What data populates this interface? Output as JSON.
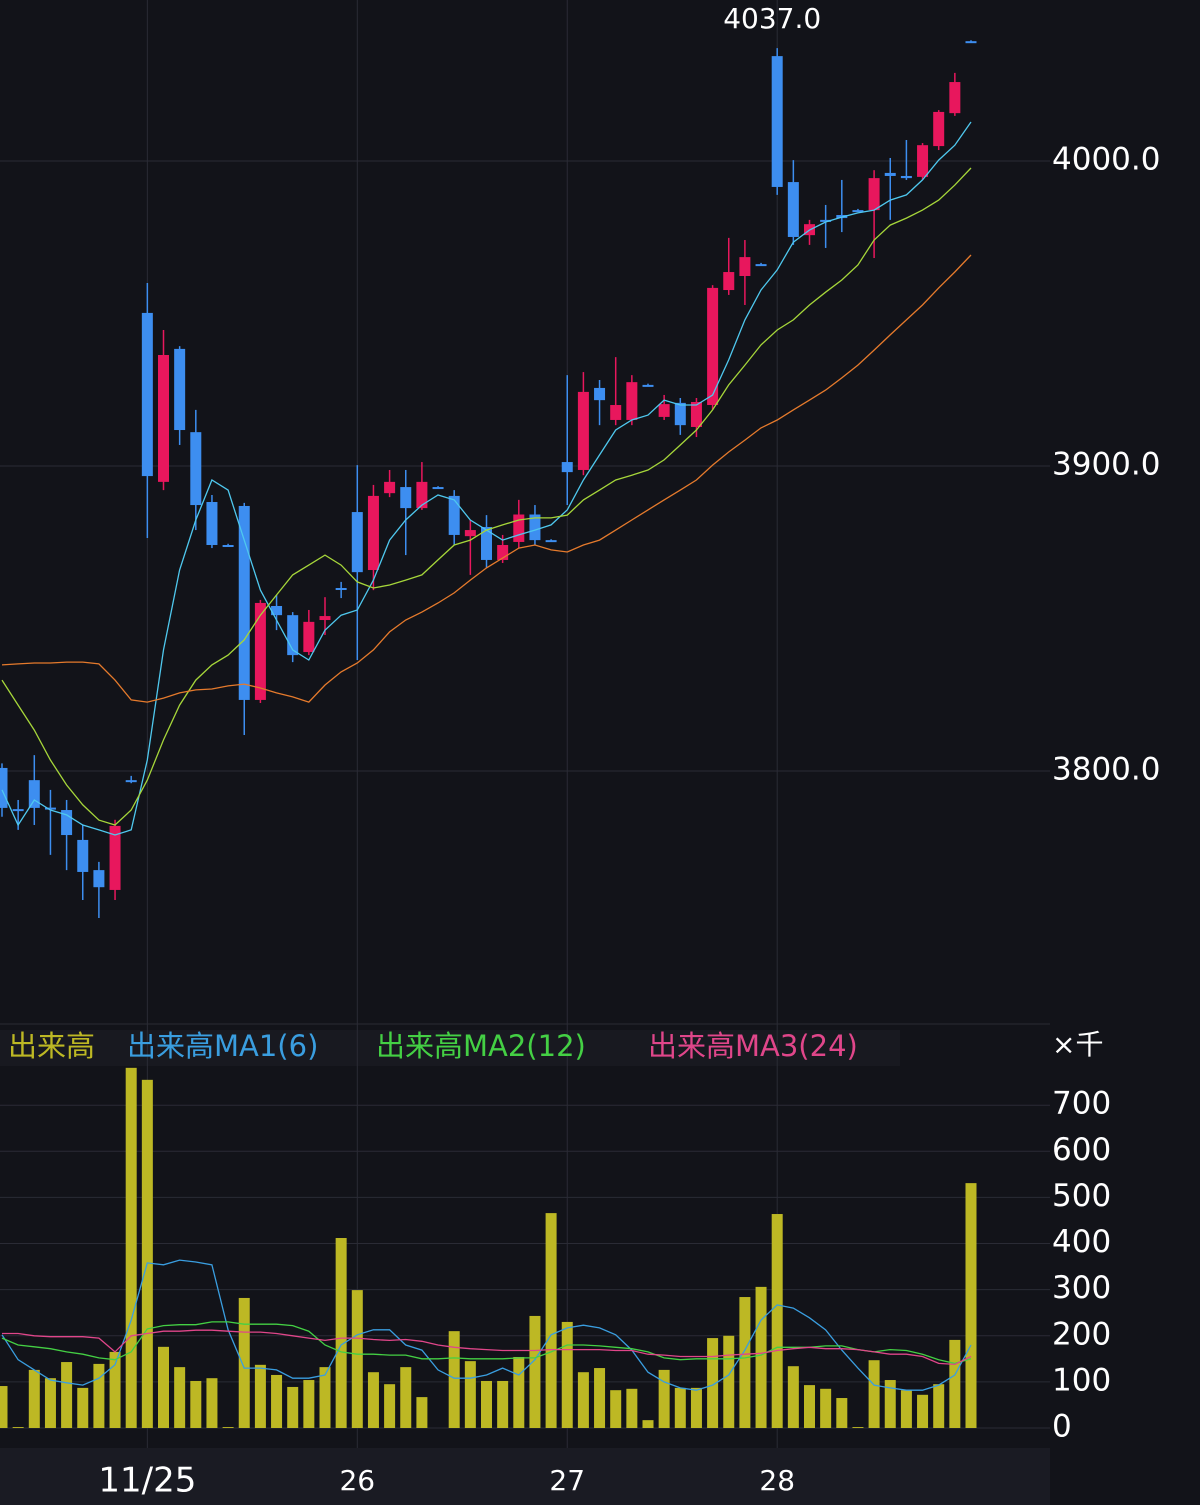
{
  "chart_data": [
    {
      "type": "candlestick",
      "up_color": "#e8175d",
      "down_color": "#3d8ef0",
      "ylim": [
        3717.7,
        4052.8
      ],
      "yticks": [
        {
          "value": 3800,
          "label": "3800.0"
        },
        {
          "value": 3900,
          "label": "3900.0"
        },
        {
          "value": 4000,
          "label": "4000.0"
        }
      ],
      "grid": true,
      "annotations": [
        {
          "value": 4037.0,
          "label": "4037.0"
        }
      ],
      "open": [
        3801.0,
        3787.5,
        3797.0,
        3788.0,
        3787.2,
        3777.4,
        3767.5,
        3761.0,
        3797.0,
        3950.2,
        3894.8,
        3938.4,
        3911.1,
        3888.2,
        3874.1,
        3886.9,
        3823.3,
        3854.1,
        3851.1,
        3839.0,
        3849.5,
        3860.0,
        3884.9,
        3865.9,
        3891.1,
        3893.1,
        3886.2,
        3893.1,
        3890.2,
        3877.0,
        3880.0,
        3869.2,
        3875.1,
        3884.1,
        3875.7,
        3901.3,
        3898.7,
        3925.6,
        3915.1,
        3915.1,
        3926.6,
        3916.1,
        3920.7,
        3912.8,
        3920.0,
        3957.7,
        3962.3,
        3966.2,
        4034.4,
        3993.1,
        3975.7,
        3980.7,
        3982.3,
        3983.9,
        3983.9,
        3996.1,
        3995.1,
        3994.8,
        4004.9,
        4015.7,
        4039.3
      ],
      "high": [
        3802.5,
        3790.5,
        3805.2,
        3793.8,
        3790.5,
        3782.3,
        3770.2,
        3784.0,
        3798.4,
        3960.0,
        3944.6,
        3939.3,
        3918.4,
        3890.5,
        3874.5,
        3887.9,
        3856.1,
        3857.7,
        3852.1,
        3852.8,
        3857.0,
        3862.0,
        3900.3,
        3893.8,
        3898.7,
        3898.7,
        3901.3,
        3893.4,
        3892.1,
        3882.3,
        3883.9,
        3877.4,
        3888.9,
        3887.2,
        3876.0,
        3929.8,
        3930.8,
        3928.2,
        3935.7,
        3929.8,
        3927.0,
        3923.3,
        3922.3,
        3922.3,
        3959.3,
        3974.8,
        3974.1,
        3966.6,
        4037.0,
        4000.3,
        3980.7,
        3985.6,
        3993.8,
        3984.3,
        3997.0,
        4001.0,
        4006.9,
        4005.9,
        4016.7,
        4028.9,
        4039.6
      ],
      "low": [
        3785.0,
        3780.7,
        3782.3,
        3772.5,
        3767.5,
        3757.7,
        3751.8,
        3757.7,
        3796.0,
        3876.4,
        3892.1,
        3906.9,
        3879.0,
        3873.1,
        3873.8,
        3811.8,
        3822.3,
        3846.2,
        3835.7,
        3838.0,
        3844.6,
        3856.7,
        3836.4,
        3859.3,
        3889.8,
        3870.8,
        3885.6,
        3892.8,
        3874.1,
        3864.3,
        3866.6,
        3868.2,
        3873.1,
        3874.1,
        3875.4,
        3887.2,
        3897.0,
        3913.4,
        3913.4,
        3913.4,
        3926.2,
        3915.1,
        3910.2,
        3909.5,
        3918.4,
        3956.1,
        3952.8,
        3965.8,
        3988.9,
        3972.5,
        3972.5,
        3971.5,
        3976.7,
        3983.6,
        3968.2,
        3980.7,
        3993.8,
        3993.8,
        4003.6,
        4014.8,
        4039.0
      ],
      "close": [
        3787.9,
        3787.5,
        3787.9,
        3787.5,
        3779.0,
        3766.9,
        3761.9,
        3782.0,
        3797.0,
        3896.7,
        3936.4,
        3911.8,
        3887.2,
        3874.1,
        3874.1,
        3823.3,
        3855.1,
        3851.1,
        3838.0,
        3848.9,
        3850.8,
        3860.0,
        3865.2,
        3890.2,
        3894.8,
        3886.2,
        3894.8,
        3893.1,
        3877.4,
        3879.0,
        3869.2,
        3874.1,
        3884.1,
        3875.7,
        3875.7,
        3898.0,
        3924.3,
        3921.6,
        3920.0,
        3927.5,
        3926.6,
        3920.3,
        3913.4,
        3921.0,
        3958.4,
        3963.6,
        3968.5,
        3966.2,
        3991.5,
        3975.1,
        3979.3,
        3980.7,
        3981.3,
        3983.9,
        3994.4,
        3995.1,
        3994.4,
        4005.2,
        4016.1,
        4025.9,
        4039.3
      ],
      "series": [
        {
          "type": "line",
          "color": "#4fc8ee",
          "values": [
            3793.8,
            3782.3,
            3790.5,
            3787.2,
            3785.6,
            3782.3,
            3780.7,
            3779.0,
            3780.7,
            3803.6,
            3839.7,
            3865.9,
            3882.3,
            3895.4,
            3892.1,
            3875.7,
            3859.3,
            3849.5,
            3839.7,
            3836.4,
            3846.2,
            3851.1,
            3852.8,
            3862.6,
            3875.7,
            3882.3,
            3887.2,
            3890.5,
            3888.9,
            3882.3,
            3879.0,
            3875.7,
            3877.4,
            3879.0,
            3880.7,
            3885.6,
            3895.4,
            3903.6,
            3911.8,
            3915.1,
            3916.7,
            3921.6,
            3920.0,
            3920.0,
            3923.3,
            3934.8,
            3947.9,
            3957.7,
            3964.3,
            3973.4,
            3977.4,
            3980.0,
            3981.6,
            3983.0,
            3983.9,
            3987.2,
            3988.9,
            3993.8,
            4000.3,
            4005.2,
            4012.8
          ]
        },
        {
          "type": "line",
          "color": "#a6d63a",
          "values": [
            3829.8,
            3821.6,
            3813.4,
            3803.6,
            3795.4,
            3788.9,
            3783.9,
            3782.3,
            3787.2,
            3797.0,
            3810.2,
            3821.6,
            3829.8,
            3834.8,
            3838.0,
            3843.0,
            3851.1,
            3857.7,
            3864.3,
            3867.5,
            3870.8,
            3867.5,
            3862.0,
            3860.0,
            3861.0,
            3862.6,
            3864.3,
            3869.2,
            3874.1,
            3875.7,
            3879.0,
            3880.7,
            3882.3,
            3883.0,
            3883.0,
            3883.9,
            3888.9,
            3892.1,
            3895.4,
            3897.0,
            3898.7,
            3902.0,
            3906.9,
            3911.8,
            3918.4,
            3926.6,
            3933.1,
            3939.7,
            3944.6,
            3947.9,
            3952.8,
            3957.0,
            3961.0,
            3965.9,
            3974.1,
            3979.0,
            3981.3,
            3983.9,
            3987.2,
            3992.1,
            3997.7
          ]
        },
        {
          "type": "line",
          "color": "#e57a2c",
          "values": [
            3834.8,
            3835.1,
            3835.4,
            3835.4,
            3835.7,
            3835.7,
            3835.1,
            3829.8,
            3823.3,
            3822.6,
            3823.9,
            3825.6,
            3826.6,
            3826.9,
            3827.9,
            3828.5,
            3827.2,
            3825.6,
            3824.3,
            3822.6,
            3828.2,
            3832.5,
            3835.4,
            3839.7,
            3845.6,
            3849.5,
            3852.1,
            3855.1,
            3858.4,
            3862.6,
            3866.6,
            3869.8,
            3873.1,
            3874.1,
            3872.5,
            3871.8,
            3874.1,
            3875.7,
            3879.0,
            3882.3,
            3885.6,
            3888.9,
            3892.1,
            3895.4,
            3900.3,
            3904.6,
            3908.5,
            3912.5,
            3915.1,
            3918.4,
            3921.6,
            3924.9,
            3928.9,
            3933.1,
            3938.0,
            3943.0,
            3947.9,
            3952.8,
            3958.4,
            3963.6,
            3969.2
          ]
        }
      ]
    },
    {
      "type": "bar",
      "categories": [
        null,
        null,
        null,
        null,
        null,
        null,
        null,
        null,
        null,
        "11/25",
        null,
        null,
        null,
        null,
        null,
        null,
        null,
        null,
        null,
        null,
        null,
        null,
        "26",
        null,
        null,
        null,
        null,
        null,
        null,
        null,
        null,
        null,
        null,
        null,
        null,
        "27",
        null,
        null,
        null,
        null,
        null,
        null,
        null,
        null,
        null,
        null,
        null,
        null,
        "28",
        null,
        null,
        null,
        null,
        null,
        null,
        null,
        null,
        null,
        null,
        null,
        null
      ],
      "y_unit_label": "×千",
      "ylim": [
        0,
        798
      ],
      "yticks": [
        0,
        100,
        200,
        300,
        400,
        500,
        600,
        700
      ],
      "grid": true,
      "series": [
        {
          "name": "出来高",
          "type": "bar",
          "color": "#bdb824",
          "values": [
            91,
            2,
            126,
            108,
            143,
            87,
            139,
            165,
            781,
            755,
            176,
            132,
            102,
            108,
            2,
            282,
            137,
            115,
            89,
            104,
            132,
            412,
            299,
            121,
            95,
            132,
            67,
            0,
            210,
            145,
            102,
            102,
            154,
            243,
            466,
            230,
            121,
            130,
            82,
            85,
            17,
            126,
            87,
            87,
            195,
            200,
            284,
            306,
            464,
            134,
            93,
            85,
            65,
            2,
            147,
            104,
            82,
            72,
            95,
            191,
            531
          ]
        },
        {
          "name": "出来高MA1(6)",
          "type": "line",
          "color": "#3a9ee0",
          "values": [
            202,
            148,
            126,
            104,
            98,
            93,
            108,
            137,
            234,
            358,
            354,
            364,
            360,
            354,
            213,
            130,
            130,
            126,
            108,
            108,
            115,
            180,
            202,
            213,
            213,
            180,
            169,
            126,
            108,
            108,
            115,
            130,
            115,
            148,
            202,
            217,
            223,
            217,
            202,
            169,
            121,
            100,
            87,
            82,
            93,
            115,
            169,
            234,
            267,
            260,
            239,
            213,
            169,
            130,
            93,
            87,
            82,
            82,
            93,
            115,
            180
          ]
        },
        {
          "name": "出来高MA2(12)",
          "type": "line",
          "color": "#44d044",
          "values": [
            195,
            180,
            176,
            172,
            165,
            160,
            152,
            148,
            165,
            215,
            222,
            224,
            224,
            230,
            230,
            225,
            225,
            225,
            222,
            210,
            180,
            165,
            160,
            160,
            158,
            158,
            150,
            150,
            152,
            150,
            150,
            150,
            152,
            152,
            165,
            180,
            180,
            178,
            175,
            172,
            165,
            152,
            148,
            150,
            150,
            150,
            152,
            158,
            175,
            175,
            175,
            178,
            178,
            170,
            165,
            170,
            168,
            160,
            148,
            140,
            150
          ]
        },
        {
          "name": "出来高MA3(24)",
          "type": "line",
          "color": "#e0468a",
          "values": [
            205,
            205,
            200,
            198,
            198,
            198,
            195,
            165,
            200,
            205,
            210,
            210,
            212,
            212,
            210,
            208,
            208,
            205,
            200,
            195,
            190,
            195,
            195,
            192,
            190,
            192,
            188,
            180,
            175,
            172,
            170,
            168,
            168,
            168,
            170,
            170,
            170,
            170,
            168,
            168,
            160,
            158,
            155,
            155,
            155,
            158,
            160,
            162,
            168,
            172,
            175,
            172,
            172,
            170,
            165,
            160,
            160,
            155,
            140,
            138,
            155
          ]
        }
      ]
    }
  ]
}
